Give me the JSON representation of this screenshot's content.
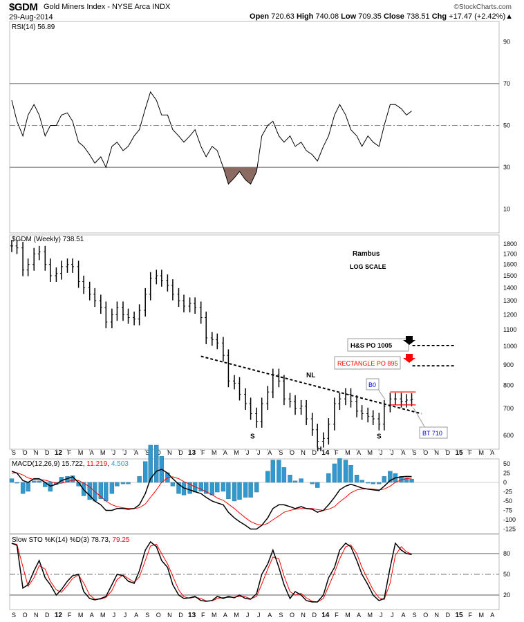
{
  "header": {
    "symbol": "$GDM",
    "name": "Gold Miners Index - NYSE Arca INDX",
    "date": "29-Aug-2014",
    "brand": "©StockCharts.com",
    "open_label": "Open",
    "open": "720.63",
    "high_label": "High",
    "high": "740.08",
    "low_label": "Low",
    "low": "709.35",
    "close_label": "Close",
    "close": "738.51",
    "chg_label": "Chg",
    "chg": "+17.47 (+2.42%)▲"
  },
  "colors": {
    "price": "#000000",
    "signal": "#ff0000",
    "histogram": "#3399cc",
    "rsi_fill": "#8b6a62",
    "annotation_blue": "#0000ff",
    "annotation_red": "#ff0000"
  },
  "chart_data": [
    {
      "type": "line",
      "panel": "rsi",
      "title": "RSI(14) 56.89",
      "ylim": [
        0,
        100
      ],
      "yticks": [
        10,
        30,
        50,
        70,
        90
      ],
      "reference_lines": [
        30,
        50,
        70
      ],
      "values": [
        62,
        52,
        45,
        55,
        60,
        55,
        45,
        50,
        50,
        55,
        56,
        52,
        42,
        40,
        36,
        32,
        35,
        30,
        40,
        42,
        38,
        40,
        45,
        48,
        58,
        66,
        62,
        55,
        55,
        48,
        45,
        42,
        45,
        48,
        40,
        35,
        40,
        38,
        30,
        22,
        25,
        28,
        24,
        22,
        28,
        45,
        50,
        52,
        45,
        42,
        45,
        40,
        42,
        38,
        36,
        33,
        40,
        45,
        55,
        60,
        55,
        48,
        45,
        40,
        45,
        42,
        40,
        50,
        60,
        60,
        58,
        55,
        56.89
      ]
    },
    {
      "type": "bar",
      "panel": "price",
      "title": "$GDM (Weekly) 738.51",
      "log_scale": true,
      "ylim": [
        560,
        1850
      ],
      "yticks": [
        600,
        700,
        800,
        900,
        1000,
        1100,
        1200,
        1300,
        1400,
        1500,
        1600,
        1700,
        1800
      ],
      "close": [
        1780,
        1760,
        1550,
        1600,
        1700,
        1720,
        1600,
        1500,
        1520,
        1580,
        1600,
        1580,
        1450,
        1400,
        1350,
        1300,
        1250,
        1150,
        1200,
        1250,
        1200,
        1180,
        1170,
        1230,
        1350,
        1480,
        1500,
        1460,
        1420,
        1350,
        1300,
        1260,
        1280,
        1250,
        1180,
        1050,
        1040,
        1020,
        950,
        820,
        810,
        760,
        720,
        680,
        650,
        720,
        770,
        850,
        820,
        740,
        730,
        700,
        710,
        660,
        620,
        580,
        590,
        640,
        720,
        740,
        760,
        730,
        690,
        680,
        670,
        660,
        640,
        710,
        740,
        740,
        730,
        735,
        738.51
      ],
      "annotations": {
        "author": "Rambus",
        "scale_note": "LOG SCALE",
        "neckline": {
          "label": "NL",
          "from": [
            "2013-02-01",
            945
          ],
          "to": [
            "2014-09-25",
            680
          ]
        },
        "hs_target": {
          "label": "H&S PO 1005",
          "value": 1005,
          "from": "2014-09-01",
          "to": "2014-12-25"
        },
        "rectangle_target": {
          "label": "RECTANGLE PO 895",
          "value": 895,
          "from": "2014-09-01",
          "to": "2014-12-25"
        },
        "rectangle": {
          "top": 770,
          "bottom": 715,
          "from": "2014-07-01",
          "to": "2014-09-10"
        },
        "breakout": "B0",
        "backtest": "BT 710",
        "pattern_labels": [
          {
            "text": "S",
            "date": "2013-06-20",
            "value": 590
          },
          {
            "text": "H",
            "date": "2013-12-20",
            "value": 548
          },
          {
            "text": "S",
            "date": "2014-06-01",
            "value": 590
          }
        ]
      }
    },
    {
      "type": "line",
      "panel": "macd",
      "title": "MACD(12,26,9)",
      "macd_value": "15.722",
      "signal_value": "11.219",
      "hist_value": "4.503",
      "ylim": [
        -135,
        55
      ],
      "yticks": [
        50,
        25,
        0,
        -25,
        -50,
        -75,
        -100,
        -125
      ],
      "macd": [
        30,
        25,
        5,
        0,
        10,
        10,
        0,
        -10,
        -5,
        5,
        10,
        15,
        0,
        -20,
        -35,
        -50,
        -60,
        -75,
        -75,
        -70,
        -70,
        -72,
        -70,
        -60,
        -30,
        10,
        30,
        35,
        25,
        10,
        -5,
        -15,
        -20,
        -25,
        -30,
        -40,
        -50,
        -55,
        -60,
        -80,
        -95,
        -105,
        -115,
        -125,
        -125,
        -115,
        -95,
        -70,
        -60,
        -60,
        -65,
        -70,
        -65,
        -70,
        -72,
        -80,
        -75,
        -60,
        -40,
        -20,
        -10,
        -5,
        -10,
        -15,
        -18,
        -20,
        -22,
        -10,
        5,
        12,
        15,
        16,
        15.72
      ],
      "signal": [
        25,
        26,
        20,
        12,
        8,
        8,
        6,
        2,
        -2,
        -2,
        2,
        6,
        5,
        -2,
        -12,
        -25,
        -38,
        -50,
        -60,
        -65,
        -68,
        -70,
        -70,
        -68,
        -58,
        -40,
        -20,
        0,
        12,
        15,
        10,
        2,
        -5,
        -12,
        -18,
        -25,
        -33,
        -42,
        -48,
        -58,
        -70,
        -82,
        -95,
        -105,
        -112,
        -115,
        -110,
        -100,
        -90,
        -80,
        -75,
        -72,
        -70,
        -70,
        -70,
        -73,
        -75,
        -72,
        -65,
        -52,
        -40,
        -28,
        -20,
        -18,
        -17,
        -18,
        -20,
        -18,
        -10,
        0,
        7,
        10,
        11.22
      ]
    },
    {
      "type": "line",
      "panel": "sto",
      "title": "Slow STO %K(14) %D(3)",
      "k_value": "78.73",
      "d_value": "79.25",
      "ylim": [
        0,
        100
      ],
      "yticks": [
        20,
        50,
        80
      ],
      "reference_lines": [
        20,
        50,
        80
      ],
      "k": [
        95,
        92,
        30,
        35,
        55,
        70,
        45,
        35,
        20,
        28,
        40,
        48,
        50,
        25,
        15,
        13,
        15,
        18,
        35,
        50,
        48,
        40,
        37,
        55,
        85,
        97,
        90,
        70,
        60,
        35,
        20,
        15,
        16,
        18,
        12,
        11,
        12,
        18,
        15,
        18,
        16,
        20,
        15,
        14,
        22,
        50,
        65,
        85,
        60,
        35,
        15,
        25,
        20,
        12,
        10,
        10,
        20,
        45,
        60,
        85,
        95,
        90,
        70,
        50,
        35,
        20,
        12,
        15,
        60,
        95,
        85,
        80,
        78.73
      ]
    }
  ],
  "dates": [
    "2011-09-01",
    "2011-09-15",
    "2011-10-01",
    "2011-10-15",
    "2011-11-01",
    "2011-11-15",
    "2011-12-01",
    "2011-12-15",
    "2012-01-01",
    "2012-01-15",
    "2012-02-01",
    "2012-02-15",
    "2012-03-01",
    "2012-03-15",
    "2012-04-01",
    "2012-04-15",
    "2012-05-01",
    "2012-05-15",
    "2012-06-01",
    "2012-06-15",
    "2012-07-01",
    "2012-07-15",
    "2012-08-01",
    "2012-08-15",
    "2012-09-01",
    "2012-09-15",
    "2012-10-01",
    "2012-10-15",
    "2012-11-01",
    "2012-11-15",
    "2012-12-01",
    "2012-12-15",
    "2013-01-01",
    "2013-01-15",
    "2013-02-01",
    "2013-02-15",
    "2013-03-01",
    "2013-03-15",
    "2013-04-01",
    "2013-04-15",
    "2013-05-01",
    "2013-05-15",
    "2013-06-01",
    "2013-06-15",
    "2013-07-01",
    "2013-07-15",
    "2013-08-01",
    "2013-08-15",
    "2013-09-01",
    "2013-09-15",
    "2013-10-01",
    "2013-10-15",
    "2013-11-01",
    "2013-11-15",
    "2013-12-01",
    "2013-12-15",
    "2014-01-01",
    "2014-01-15",
    "2014-02-01",
    "2014-02-15",
    "2014-03-01",
    "2014-03-15",
    "2014-04-01",
    "2014-04-15",
    "2014-05-01",
    "2014-05-15",
    "2014-06-01",
    "2014-06-15",
    "2014-07-01",
    "2014-07-15",
    "2014-08-01",
    "2014-08-15",
    "2014-08-29"
  ],
  "x_axis_labels": [
    "S",
    "O",
    "N",
    "D",
    "12",
    "F",
    "M",
    "A",
    "M",
    "J",
    "J",
    "A",
    "S",
    "O",
    "N",
    "D",
    "13",
    "F",
    "M",
    "A",
    "M",
    "J",
    "J",
    "A",
    "S",
    "O",
    "N",
    "D",
    "14",
    "F",
    "M",
    "A",
    "M",
    "J",
    "J",
    "A",
    "S",
    "O",
    "N",
    "D",
    "15",
    "F",
    "M",
    "A"
  ]
}
